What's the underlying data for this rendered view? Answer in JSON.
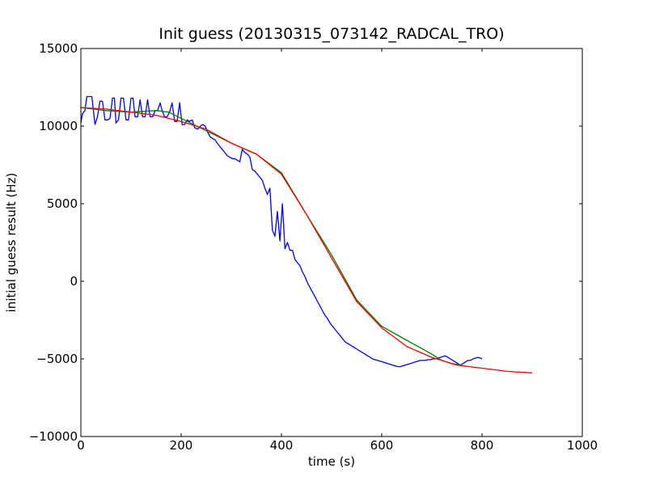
{
  "chart_data": {
    "type": "line",
    "title": "Init guess (20130315_073142_RADCAL_TRO)",
    "xlabel": "time (s)",
    "ylabel": "initial guess result (Hz)",
    "xlim": [
      0,
      1000
    ],
    "ylim": [
      -10000,
      15000
    ],
    "xticks": [
      0,
      200,
      400,
      600,
      800,
      1000
    ],
    "yticks": [
      -10000,
      -5000,
      0,
      5000,
      10000,
      15000
    ],
    "grid": false,
    "legend": "none",
    "series": [
      {
        "color": "#0000ff",
        "x": [
          0,
          3,
          8,
          12,
          17,
          22,
          28,
          33,
          38,
          43,
          48,
          53,
          58,
          63,
          67,
          70,
          75,
          80,
          85,
          90,
          95,
          100,
          104,
          108,
          113,
          118,
          123,
          128,
          133,
          138,
          143,
          148,
          153,
          158,
          162,
          167,
          172,
          177,
          182,
          187,
          192,
          197,
          202,
          207,
          212,
          217,
          222,
          227,
          233,
          238,
          243,
          248,
          253,
          258,
          263,
          268,
          272,
          277,
          282,
          287,
          292,
          297,
          302,
          307,
          312,
          317,
          322,
          327,
          332,
          337,
          342,
          347,
          352,
          357,
          362,
          367,
          372,
          377,
          382,
          387,
          392,
          397,
          402,
          407,
          412,
          417,
          422,
          427,
          432,
          437,
          442,
          447,
          452,
          457,
          462,
          467,
          472,
          477,
          482,
          487,
          492,
          497,
          502,
          507,
          512,
          517,
          522,
          527,
          532,
          537,
          542,
          547,
          552,
          557,
          562,
          567,
          572,
          577,
          582,
          587,
          592,
          597,
          602,
          607,
          612,
          617,
          622,
          627,
          632,
          637,
          642,
          647,
          652,
          657,
          662,
          667,
          672,
          677,
          682,
          687,
          692,
          697,
          702,
          707,
          712,
          717,
          722,
          727,
          732,
          737,
          742,
          747,
          752,
          757,
          762,
          767,
          772,
          777,
          782,
          787,
          792,
          797,
          800
        ],
        "y": [
          10200,
          10800,
          11000,
          11900,
          11900,
          11900,
          10100,
          10600,
          11600,
          11600,
          10400,
          10400,
          10500,
          11800,
          11800,
          10200,
          10400,
          11800,
          11800,
          10400,
          10400,
          11800,
          11800,
          10600,
          10600,
          11700,
          10600,
          10600,
          11700,
          10600,
          10600,
          11000,
          11000,
          11500,
          11000,
          10600,
          10600,
          10900,
          11500,
          10300,
          10300,
          11500,
          10100,
          10100,
          10400,
          10300,
          10400,
          9900,
          9800,
          10000,
          10100,
          10000,
          9600,
          9300,
          9200,
          9100,
          8900,
          8700,
          8500,
          8300,
          8100,
          8000,
          7900,
          7900,
          7800,
          7700,
          8500,
          8300,
          8200,
          8000,
          7200,
          7100,
          6900,
          6700,
          6500,
          6000,
          5600,
          6000,
          3300,
          2900,
          4500,
          2600,
          5000,
          2100,
          2500,
          2000,
          2000,
          1400,
          1200,
          1000,
          600,
          300,
          -100,
          -400,
          -700,
          -1000,
          -1300,
          -1600,
          -1900,
          -2200,
          -2400,
          -2700,
          -2900,
          -3100,
          -3300,
          -3500,
          -3700,
          -3900,
          -4000,
          -4100,
          -4200,
          -4300,
          -4400,
          -4500,
          -4600,
          -4700,
          -4800,
          -4900,
          -5000,
          -5050,
          -5100,
          -5150,
          -5200,
          -5250,
          -5300,
          -5350,
          -5400,
          -5450,
          -5500,
          -5500,
          -5450,
          -5400,
          -5350,
          -5300,
          -5250,
          -5200,
          -5150,
          -5100,
          -5100,
          -5100,
          -5050,
          -5050,
          -5000,
          -5000,
          -4950,
          -4900,
          -4850,
          -4800,
          -4900,
          -5000,
          -5100,
          -5200,
          -5300,
          -5400,
          -5300,
          -5200,
          -5100,
          -5100,
          -5000,
          -4950,
          -4900,
          -4950,
          -5000
        ]
      },
      {
        "color": "#008000",
        "x": [
          0,
          50,
          100,
          150,
          175,
          200,
          250,
          300,
          350,
          400,
          450,
          500,
          550,
          600,
          650,
          700,
          720,
          740,
          760
        ],
        "y": [
          11200,
          11000,
          10900,
          11000,
          10900,
          10500,
          9700,
          8900,
          8200,
          7000,
          4300,
          1700,
          -1200,
          -2900,
          -3800,
          -4700,
          -5100,
          -5300,
          -5400
        ]
      },
      {
        "color": "#ff0000",
        "x": [
          0,
          50,
          100,
          150,
          200,
          250,
          300,
          350,
          400,
          450,
          500,
          550,
          600,
          650,
          700,
          750,
          800,
          850,
          900
        ],
        "y": [
          11200,
          11100,
          10900,
          10700,
          10300,
          9800,
          8900,
          8200,
          6900,
          4300,
          1500,
          -1300,
          -3000,
          -4200,
          -4900,
          -5400,
          -5600,
          -5800,
          -5900
        ]
      }
    ]
  }
}
